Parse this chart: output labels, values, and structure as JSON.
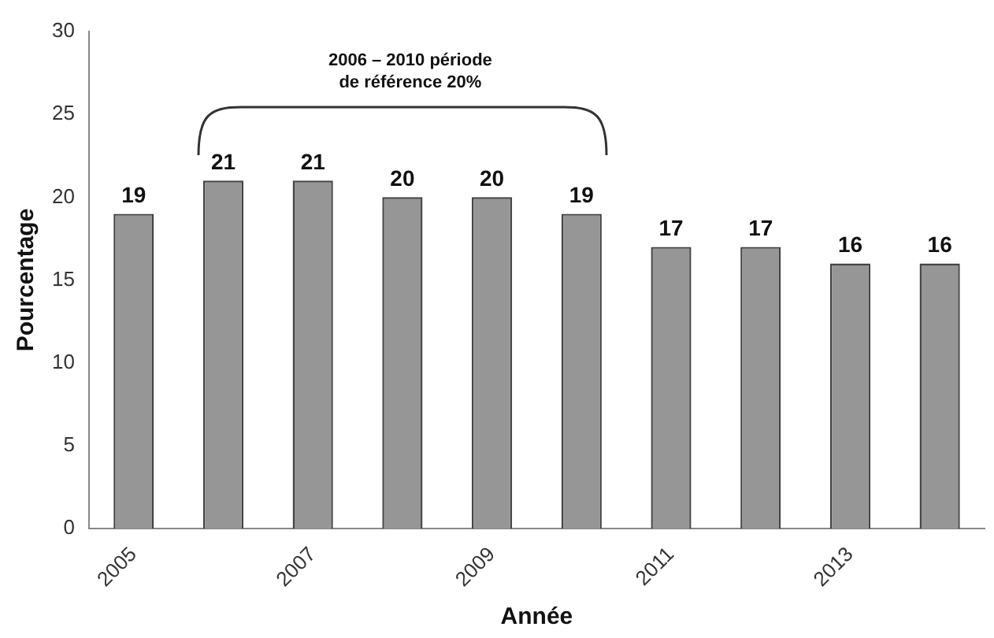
{
  "chart_data": {
    "type": "bar",
    "xlabel": "Année",
    "ylabel": "Pourcentage",
    "categories": [
      "2005",
      null,
      "2007",
      null,
      "2009",
      null,
      "2011",
      null,
      "2013",
      null
    ],
    "values": [
      19,
      21,
      21,
      20,
      20,
      19,
      17,
      17,
      16,
      16
    ],
    "color": "#969696",
    "ylim": [
      0,
      30
    ],
    "yticks": [
      0,
      5,
      10,
      15,
      20,
      25,
      30
    ],
    "grid": false,
    "legend": false,
    "data_labels": true,
    "annotations": [
      "2006 – 2010 période\nde référence 20%"
    ]
  }
}
